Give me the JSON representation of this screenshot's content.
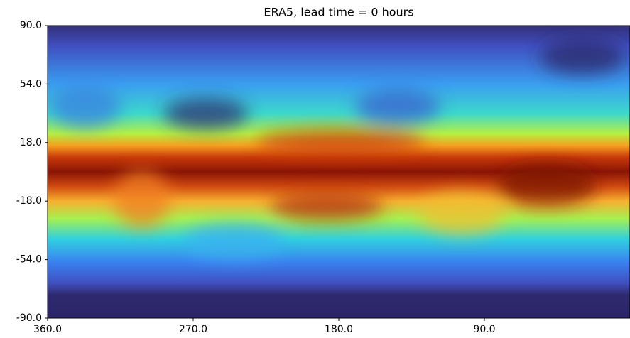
{
  "chart_data": {
    "type": "image",
    "title": "ERA5, lead time = 0 hours",
    "xlim": [
      360,
      0
    ],
    "ylim": [
      -90,
      90
    ],
    "xticks": [
      {
        "value": 360,
        "label": "360.0"
      },
      {
        "value": 270,
        "label": "270.0"
      },
      {
        "value": 180,
        "label": "180.0"
      },
      {
        "value": 90,
        "label": "90.0"
      }
    ],
    "yticks": [
      {
        "value": 90,
        "label": "90.0"
      },
      {
        "value": 54,
        "label": "54.0"
      },
      {
        "value": 18,
        "label": "18.0"
      },
      {
        "value": -18,
        "label": "-18.0"
      },
      {
        "value": -54,
        "label": "-54.0"
      },
      {
        "value": -90,
        "label": "-90.0"
      }
    ],
    "grid": false
  }
}
